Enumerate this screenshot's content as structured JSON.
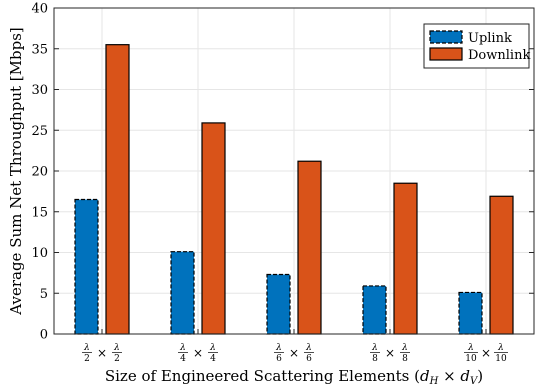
{
  "chart_data": {
    "type": "bar",
    "categories": [
      {
        "num": "λ",
        "den": "2"
      },
      {
        "num": "λ",
        "den": "4"
      },
      {
        "num": "λ",
        "den": "6"
      },
      {
        "num": "λ",
        "den": "8"
      },
      {
        "num": "λ",
        "den": "10"
      }
    ],
    "category_operator": "×",
    "series": [
      {
        "name": "Uplink",
        "values": [
          16.5,
          10.1,
          7.3,
          5.9,
          5.1
        ],
        "color": "#0072BD",
        "edge": "dashed"
      },
      {
        "name": "Downlink",
        "values": [
          35.5,
          25.9,
          21.2,
          18.5,
          16.9
        ],
        "color": "#D95319",
        "edge": "solid"
      }
    ],
    "xlabel": "Size of Engineered Scattering Elements (d_H × d_V)",
    "xlabel_parts": {
      "prefix": "Size of Engineered Scattering Elements (",
      "v1": "d",
      "s1": "H",
      "op": " × ",
      "v2": "d",
      "s2": "V",
      "suffix": ")"
    },
    "ylabel": "Average Sum Net Throughput [Mbps]",
    "ylim": [
      0,
      40
    ],
    "yticks": [
      0,
      5,
      10,
      15,
      20,
      25,
      30,
      35,
      40
    ],
    "grid": true,
    "legend_position": "top-right"
  }
}
